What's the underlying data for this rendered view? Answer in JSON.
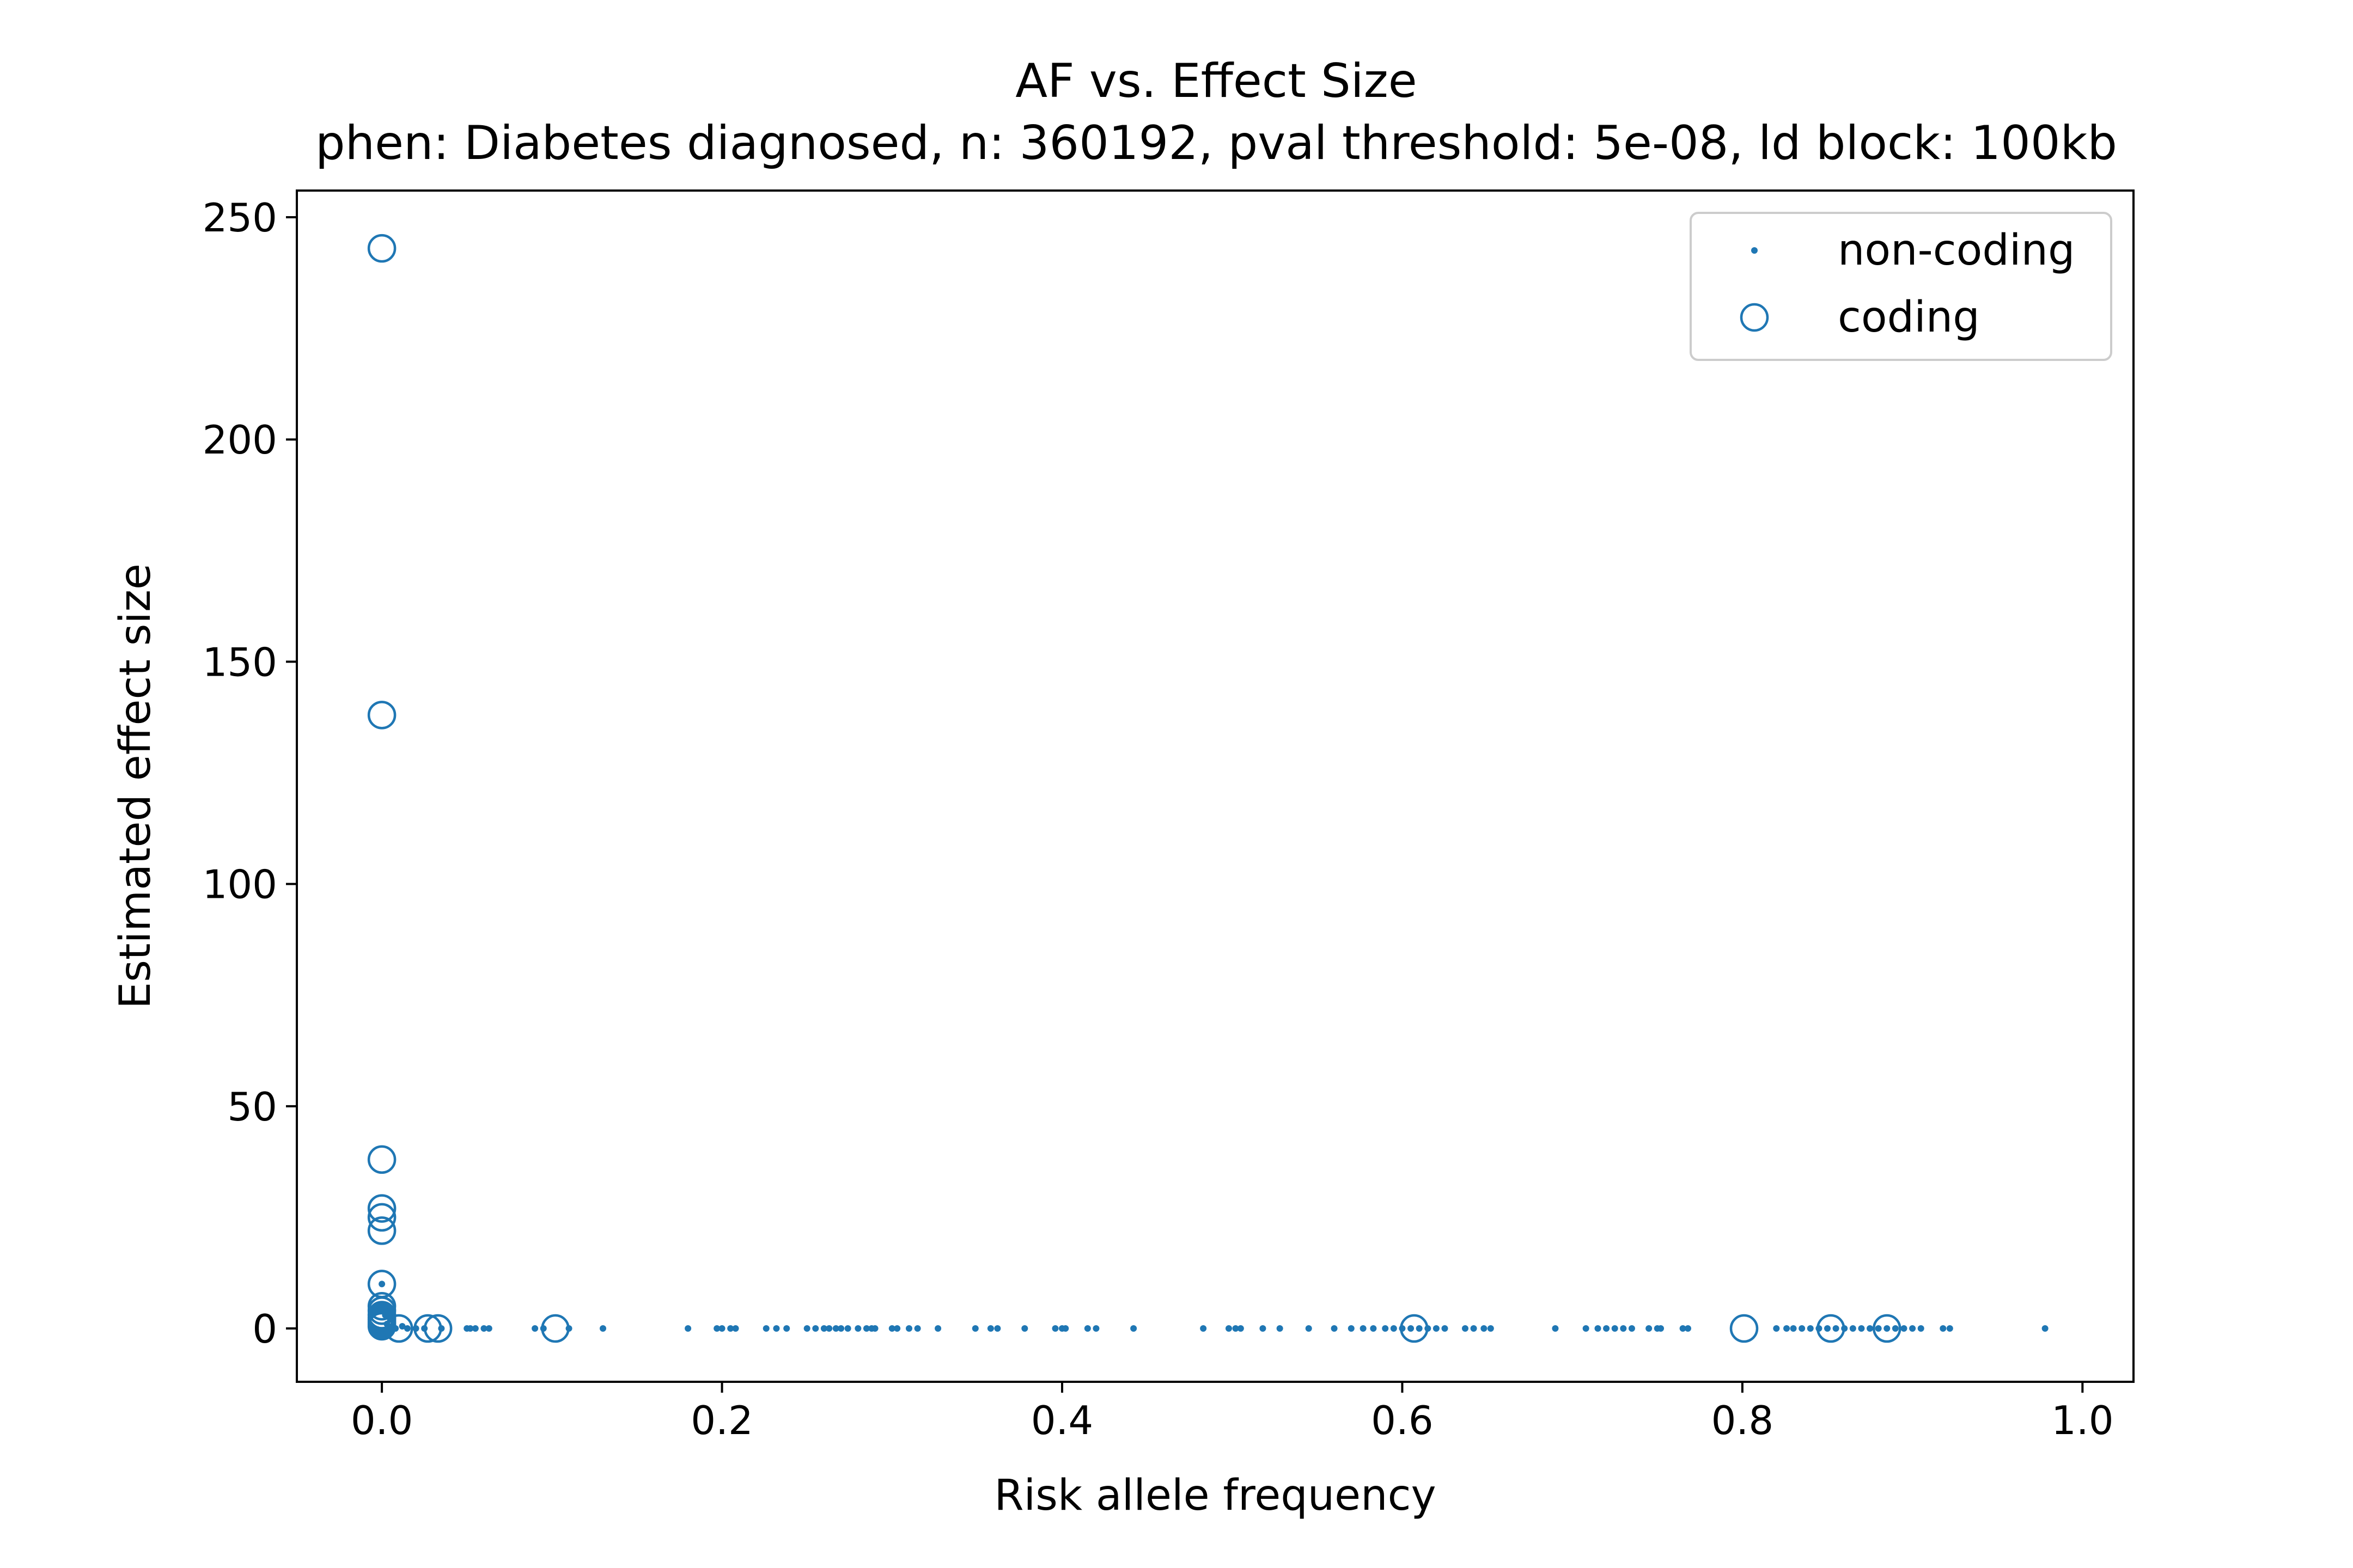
{
  "chart_data": {
    "type": "scatter",
    "title": "AF vs. Effect Size",
    "subtitle": "phen: Diabetes diagnosed, n: 360192, pval threshold: 5e-08, ld block: 100kb",
    "xlabel": "Risk allele frequency",
    "ylabel": "Estimated effect size",
    "xlim": [
      -0.05,
      1.03
    ],
    "ylim": [
      -12,
      256
    ],
    "xticks": [
      "0.0",
      "0.2",
      "0.4",
      "0.6",
      "0.8",
      "1.0"
    ],
    "yticks": [
      "0",
      "50",
      "100",
      "150",
      "200",
      "250"
    ],
    "grid": false,
    "legend_position": "top-right",
    "series_color": "#1f77b4",
    "series": [
      {
        "name": "non-coding",
        "marker": "dot",
        "x": [
          0.0,
          0.001,
          0.002,
          0.003,
          0.005,
          0.008,
          0.012,
          0.015,
          0.02,
          0.025,
          0.035,
          0.05,
          0.052,
          0.055,
          0.06,
          0.063,
          0.09,
          0.095,
          0.11,
          0.13,
          0.18,
          0.197,
          0.2,
          0.205,
          0.208,
          0.226,
          0.232,
          0.238,
          0.25,
          0.255,
          0.26,
          0.263,
          0.267,
          0.27,
          0.274,
          0.28,
          0.285,
          0.288,
          0.29,
          0.3,
          0.303,
          0.31,
          0.315,
          0.327,
          0.349,
          0.358,
          0.362,
          0.378,
          0.396,
          0.4,
          0.402,
          0.415,
          0.42,
          0.442,
          0.483,
          0.498,
          0.502,
          0.505,
          0.518,
          0.528,
          0.545,
          0.56,
          0.57,
          0.577,
          0.583,
          0.59,
          0.595,
          0.6,
          0.605,
          0.61,
          0.615,
          0.62,
          0.625,
          0.637,
          0.642,
          0.648,
          0.652,
          0.69,
          0.708,
          0.715,
          0.72,
          0.725,
          0.73,
          0.735,
          0.745,
          0.75,
          0.752,
          0.765,
          0.768,
          0.82,
          0.826,
          0.83,
          0.835,
          0.84,
          0.845,
          0.85,
          0.855,
          0.86,
          0.865,
          0.87,
          0.875,
          0.88,
          0.885,
          0.89,
          0.895,
          0.9,
          0.905,
          0.918,
          0.922,
          0.978
        ],
        "y": [
          10,
          5,
          3,
          1,
          2,
          0,
          0.5,
          0,
          0,
          0,
          0,
          0,
          0,
          0,
          0,
          0,
          0,
          0,
          0,
          0,
          0,
          0,
          0,
          0,
          0,
          0,
          0,
          0,
          0,
          0,
          0,
          0,
          0,
          0,
          0,
          0,
          0,
          0,
          0,
          0,
          0,
          0,
          0,
          0,
          0,
          0,
          0,
          0,
          0,
          0,
          0,
          0,
          0,
          0,
          0,
          0,
          0,
          0,
          0,
          0,
          0,
          0,
          0,
          0,
          0,
          0,
          0,
          0,
          0,
          0,
          0,
          0,
          0,
          0,
          0,
          0,
          0,
          0,
          0,
          0,
          0,
          0,
          0,
          0,
          0,
          0,
          0,
          0,
          0,
          0,
          0,
          0,
          0,
          0,
          0,
          0,
          0,
          0,
          0,
          0,
          0,
          0,
          0,
          0,
          0,
          0,
          0,
          0,
          0,
          0
        ]
      },
      {
        "name": "coding",
        "marker": "circle",
        "x": [
          0.0,
          0.0,
          0.0,
          0.0,
          0.0,
          0.0,
          0.0,
          0.0,
          0.0,
          0.0,
          0.0,
          0.0,
          0.0,
          0.0,
          0.0,
          0.01,
          0.027,
          0.033,
          0.102,
          0.607,
          0.801,
          0.852,
          0.885
        ],
        "y": [
          243,
          138,
          38,
          27,
          25,
          22,
          10,
          5,
          4,
          3,
          2.5,
          2,
          1.5,
          1,
          0.5,
          0,
          0,
          0,
          0,
          0,
          0,
          0,
          0
        ]
      }
    ]
  }
}
